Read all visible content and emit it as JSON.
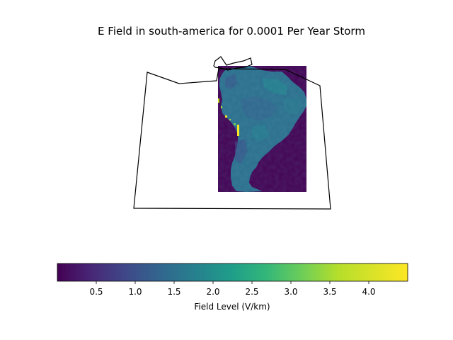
{
  "chart_data": {
    "type": "heatmap",
    "title": "E Field in south-america for 0.0001 Per Year Storm",
    "map_region": "south-america",
    "colormap": "viridis",
    "colorbar": {
      "orientation": "horizontal",
      "label": "Field Level (V/km)",
      "range": [
        0.0,
        4.5
      ],
      "ticks": [
        0.5,
        1.0,
        1.5,
        2.0,
        2.5,
        3.0,
        3.5,
        4.0
      ],
      "tick_labels": [
        "0.5",
        "1.0",
        "1.5",
        "2.0",
        "2.5",
        "3.0",
        "3.5",
        "4.0"
      ]
    },
    "field_levels": {
      "background": 0.05,
      "continent_typical": 1.6,
      "continent_range": [
        1.2,
        2.0
      ],
      "western_coast_peak": 4.5
    },
    "grid": false
  },
  "colors": {
    "background_low": "#440154",
    "continent_mid": "#2a788e",
    "high": "#fde725",
    "outline": "#000000"
  }
}
